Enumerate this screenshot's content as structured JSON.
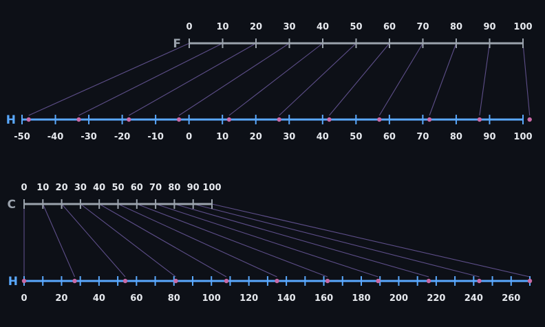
{
  "colors": {
    "background": "#0d1017",
    "source_axis": "#9ba3ad",
    "target_axis": "#5aa9ff",
    "connector": "#5e4f8a",
    "marker": "#c86aa6",
    "label": "#e6e9ee",
    "axis_name": "#9ba3ad"
  },
  "diagrams": [
    {
      "source": {
        "name": "F",
        "min": 0,
        "max": 100,
        "ticks": [
          0,
          10,
          20,
          30,
          40,
          50,
          60,
          70,
          80,
          90,
          100
        ],
        "tick_labels": [
          "0",
          "10",
          "20",
          "30",
          "40",
          "50",
          "60",
          "70",
          "80",
          "90",
          "100"
        ]
      },
      "target": {
        "name": "H",
        "min": -50,
        "max": 100,
        "ticks": [
          -50,
          -40,
          -30,
          -20,
          -10,
          0,
          10,
          20,
          30,
          40,
          50,
          60,
          70,
          80,
          90,
          100
        ],
        "tick_labels": [
          "-50",
          "-40",
          "-30",
          "-20",
          "-10",
          "0",
          "10",
          "20",
          "30",
          "40",
          "50",
          "60",
          "70",
          "80",
          "90",
          "100"
        ]
      },
      "mapping": [
        {
          "from": 0,
          "to": -48
        },
        {
          "from": 10,
          "to": -33
        },
        {
          "from": 20,
          "to": -18
        },
        {
          "from": 30,
          "to": -3
        },
        {
          "from": 40,
          "to": 12
        },
        {
          "from": 50,
          "to": 27
        },
        {
          "from": 60,
          "to": 42
        },
        {
          "from": 70,
          "to": 57
        },
        {
          "from": 80,
          "to": 72
        },
        {
          "from": 90,
          "to": 87
        },
        {
          "from": 100,
          "to": 102
        }
      ]
    },
    {
      "source": {
        "name": "C",
        "min": 0,
        "max": 100,
        "ticks": [
          0,
          10,
          20,
          30,
          40,
          50,
          60,
          70,
          80,
          90,
          100
        ],
        "tick_labels": [
          "0",
          "10",
          "20",
          "30",
          "40",
          "50",
          "60",
          "70",
          "80",
          "90",
          "100"
        ]
      },
      "target": {
        "name": "H",
        "min": 0,
        "max": 270,
        "ticks": [
          0,
          10,
          20,
          30,
          40,
          50,
          60,
          70,
          80,
          90,
          100,
          110,
          120,
          130,
          140,
          150,
          160,
          170,
          180,
          190,
          200,
          210,
          220,
          230,
          240,
          250,
          260,
          270
        ],
        "tick_labels": [
          "0",
          "20",
          "40",
          "60",
          "80",
          "100",
          "120",
          "140",
          "160",
          "180",
          "200",
          "220",
          "240",
          "260"
        ],
        "tick_label_values": [
          0,
          20,
          40,
          60,
          80,
          100,
          120,
          140,
          160,
          180,
          200,
          220,
          240,
          260
        ]
      },
      "mapping": [
        {
          "from": 0,
          "to": 0
        },
        {
          "from": 10,
          "to": 27
        },
        {
          "from": 20,
          "to": 54
        },
        {
          "from": 30,
          "to": 81
        },
        {
          "from": 40,
          "to": 108
        },
        {
          "from": 50,
          "to": 135
        },
        {
          "from": 60,
          "to": 162
        },
        {
          "from": 70,
          "to": 189
        },
        {
          "from": 80,
          "to": 216
        },
        {
          "from": 90,
          "to": 243
        },
        {
          "from": 100,
          "to": 270
        }
      ]
    }
  ]
}
